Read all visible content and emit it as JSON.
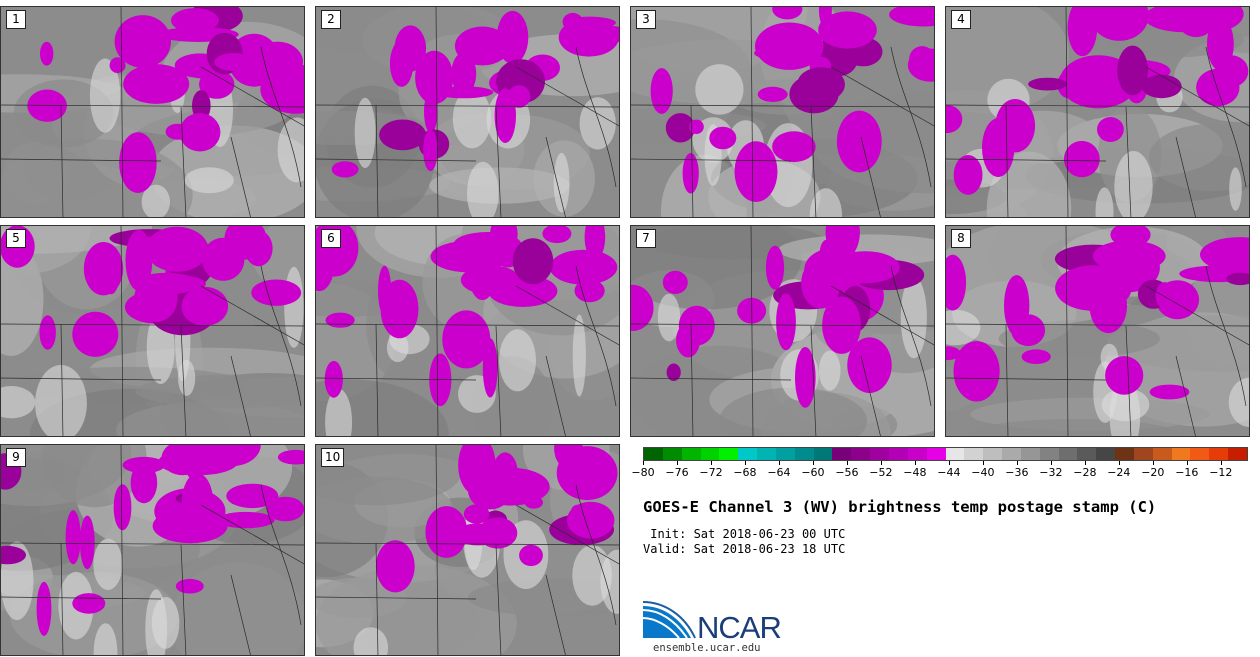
{
  "panels": [
    {
      "label": "1"
    },
    {
      "label": "2"
    },
    {
      "label": "3"
    },
    {
      "label": "4"
    },
    {
      "label": "5"
    },
    {
      "label": "6"
    },
    {
      "label": "7"
    },
    {
      "label": "8"
    },
    {
      "label": "9"
    },
    {
      "label": "10"
    }
  ],
  "colorbar": {
    "colors": [
      "#006400",
      "#008c00",
      "#00b400",
      "#00d200",
      "#00f000",
      "#00c8c8",
      "#00b4b4",
      "#00a0a0",
      "#008c8c",
      "#007878",
      "#780078",
      "#8c008c",
      "#a000a0",
      "#b400b4",
      "#c800c8",
      "#e600e6",
      "#e6e6e6",
      "#d2d2d2",
      "#bebebe",
      "#aaaaaa",
      "#969696",
      "#828282",
      "#6e6e6e",
      "#5a5a5a",
      "#464646",
      "#6e3214",
      "#a0461e",
      "#c85a1e",
      "#f0781e",
      "#f05a14",
      "#e63c0a",
      "#c81e00"
    ],
    "ticks": [
      "−80",
      "−76",
      "−72",
      "−68",
      "−64",
      "−60",
      "−56",
      "−52",
      "−48",
      "−44",
      "−40",
      "−36",
      "−32",
      "−28",
      "−24",
      "−20",
      "−16",
      "−12"
    ]
  },
  "title": "GOES-E Channel 3 (WV) brightness temp postage stamp (C)",
  "init_label": " Init: Sat 2018-06-23 00 UTC",
  "valid_label": "Valid: Sat 2018-06-23 18 UTC",
  "logo_text": "NCAR",
  "logo_url": "ensemble.ucar.edu"
}
